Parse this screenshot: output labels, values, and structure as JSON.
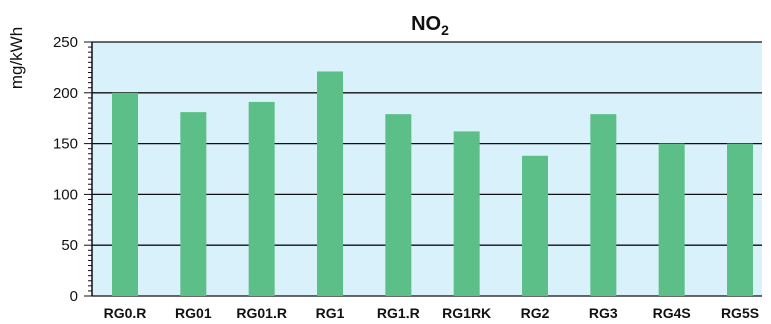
{
  "chart_data": {
    "type": "bar",
    "title": "NO",
    "title_subscript": "2",
    "ylabel": "mg/kWh",
    "xlabel": "",
    "categories": [
      "RG0.R",
      "RG01",
      "RG01.R",
      "RG1",
      "RG1.R",
      "RG1RK",
      "RG2",
      "RG3",
      "RG4S",
      "RG5S"
    ],
    "values": [
      200,
      181,
      191,
      221,
      179,
      162,
      138,
      179,
      150,
      150
    ],
    "ylim": [
      0,
      250
    ],
    "yticks": [
      "0",
      "50",
      "100",
      "150",
      "200",
      "250"
    ],
    "grid": true,
    "colors": {
      "bar": "#5dbf88",
      "plot_background": "#d9f1fb",
      "grid": "#111111",
      "axis": "#111111"
    }
  }
}
